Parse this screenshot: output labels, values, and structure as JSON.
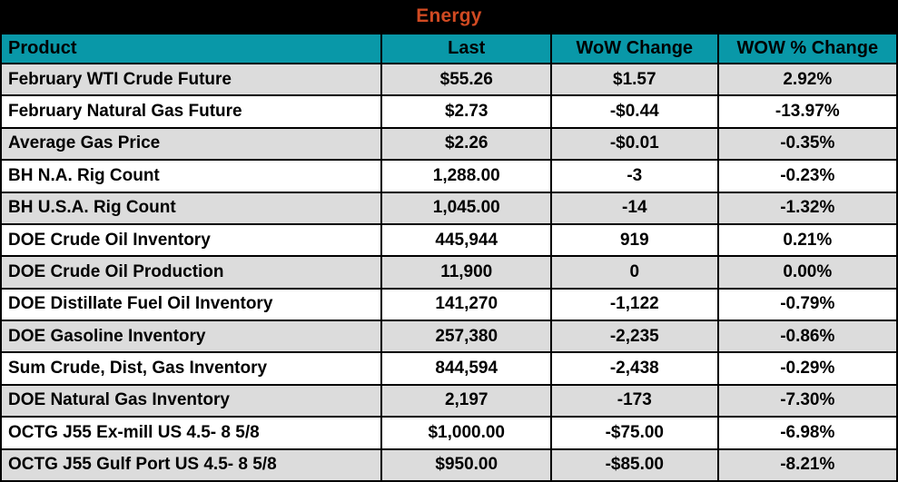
{
  "title": "Energy",
  "colors": {
    "title_text": "#D04A22",
    "title_band_bg": "#000000",
    "header_bg": "#0998A8",
    "row_alt_bg": "#DCDCDC",
    "row_bg": "#FFFFFF",
    "grid_border": "#000000",
    "text": "#000000"
  },
  "table": {
    "columns": [
      "Product",
      "Last",
      "WoW Change",
      "WOW % Change"
    ],
    "rows": [
      [
        "February WTI Crude Future",
        "$55.26",
        "$1.57",
        "2.92%"
      ],
      [
        "February Natural Gas Future",
        "$2.73",
        "-$0.44",
        "-13.97%"
      ],
      [
        "Average Gas Price",
        "$2.26",
        "-$0.01",
        "-0.35%"
      ],
      [
        "BH N.A. Rig Count",
        "1,288.00",
        "-3",
        "-0.23%"
      ],
      [
        "BH U.S.A. Rig Count",
        "1,045.00",
        "-14",
        "-1.32%"
      ],
      [
        "DOE Crude Oil Inventory",
        "445,944",
        "919",
        "0.21%"
      ],
      [
        "DOE Crude Oil Production",
        "11,900",
        "0",
        "0.00%"
      ],
      [
        "DOE Distillate Fuel Oil Inventory",
        "141,270",
        "-1,122",
        "-0.79%"
      ],
      [
        "DOE Gasoline Inventory",
        "257,380",
        "-2,235",
        "-0.86%"
      ],
      [
        "Sum Crude, Dist, Gas Inventory",
        "844,594",
        "-2,438",
        "-0.29%"
      ],
      [
        "DOE Natural Gas Inventory",
        "2,197",
        "-173",
        "-7.30%"
      ],
      [
        "OCTG J55 Ex-mill US 4.5- 8 5/8",
        "$1,000.00",
        "-$75.00",
        "-6.98%"
      ],
      [
        "OCTG J55 Gulf Port US 4.5- 8 5/8",
        "$950.00",
        "-$85.00",
        "-8.21%"
      ]
    ]
  },
  "chart_data": {
    "type": "table",
    "title": "Energy",
    "columns": [
      "Product",
      "Last",
      "WoW Change",
      "WOW % Change"
    ],
    "rows": [
      {
        "product": "February WTI Crude Future",
        "last": 55.26,
        "wow_change": 1.57,
        "wow_pct_change": 2.92
      },
      {
        "product": "February Natural Gas Future",
        "last": 2.73,
        "wow_change": -0.44,
        "wow_pct_change": -13.97
      },
      {
        "product": "Average Gas Price",
        "last": 2.26,
        "wow_change": -0.01,
        "wow_pct_change": -0.35
      },
      {
        "product": "BH N.A. Rig Count",
        "last": 1288.0,
        "wow_change": -3,
        "wow_pct_change": -0.23
      },
      {
        "product": "BH U.S.A. Rig Count",
        "last": 1045.0,
        "wow_change": -14,
        "wow_pct_change": -1.32
      },
      {
        "product": "DOE Crude Oil Inventory",
        "last": 445944,
        "wow_change": 919,
        "wow_pct_change": 0.21
      },
      {
        "product": "DOE Crude Oil Production",
        "last": 11900,
        "wow_change": 0,
        "wow_pct_change": 0.0
      },
      {
        "product": "DOE Distillate Fuel Oil Inventory",
        "last": 141270,
        "wow_change": -1122,
        "wow_pct_change": -0.79
      },
      {
        "product": "DOE Gasoline Inventory",
        "last": 257380,
        "wow_change": -2235,
        "wow_pct_change": -0.86
      },
      {
        "product": "Sum Crude, Dist, Gas Inventory",
        "last": 844594,
        "wow_change": -2438,
        "wow_pct_change": -0.29
      },
      {
        "product": "DOE Natural Gas Inventory",
        "last": 2197,
        "wow_change": -173,
        "wow_pct_change": -7.3
      },
      {
        "product": "OCTG J55 Ex-mill US 4.5- 8 5/8",
        "last": 1000.0,
        "wow_change": -75.0,
        "wow_pct_change": -6.98
      },
      {
        "product": "OCTG J55 Gulf Port US 4.5- 8 5/8",
        "last": 950.0,
        "wow_change": -85.0,
        "wow_pct_change": -8.21
      }
    ]
  }
}
